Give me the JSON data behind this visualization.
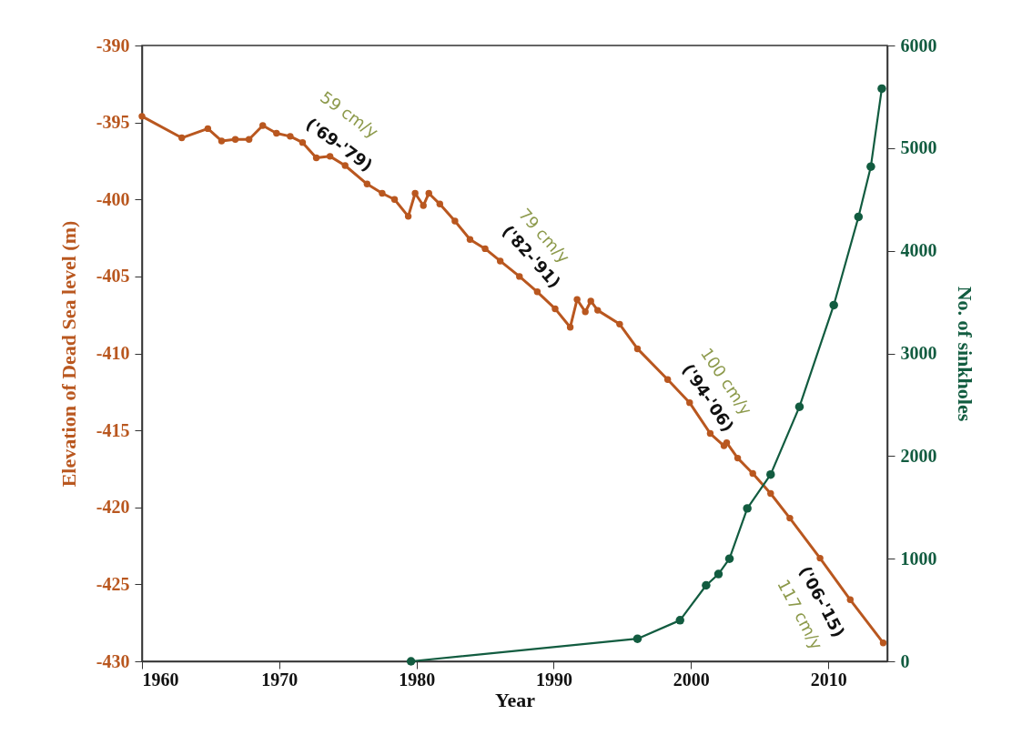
{
  "chart_data": {
    "type": "line",
    "xlabel": "Year",
    "ylabel": "Elevation of Dead Sea level (m)",
    "y2label": "No. of sinkholes",
    "xlim": [
      1960,
      2014.3
    ],
    "xticks": [
      1960,
      1970,
      1980,
      1990,
      2000,
      2010
    ],
    "ylim": [
      -430,
      -390
    ],
    "yticks": [
      -430,
      -425,
      -420,
      -415,
      -410,
      -405,
      -400,
      -395,
      -390
    ],
    "y2lim": [
      0,
      6000
    ],
    "y2ticks": [
      0,
      1000,
      2000,
      3000,
      4000,
      5000,
      6000
    ],
    "grid": false,
    "marker": "circle",
    "series": [
      {
        "color": "#b9571f",
        "axis": "y",
        "x": [
          1960,
          1962.9,
          1964.8,
          1965.8,
          1966.8,
          1967.8,
          1968.8,
          1969.8,
          1970.8,
          1971.7,
          1972.7,
          1973.7,
          1974.8,
          1976.4,
          1977.5,
          1978.4,
          1979.4,
          1979.9,
          1980.5,
          1980.9,
          1981.7,
          1982.8,
          1983.9,
          1985.0,
          1986.1,
          1987.5,
          1988.8,
          1990.1,
          1991.2,
          1991.7,
          1992.3,
          1992.7,
          1993.2,
          1994.8,
          1996.1,
          1998.3,
          1999.9,
          2001.4,
          2002.4,
          2002.6,
          2003.4,
          2004.5,
          2005.8,
          2007.2,
          2009.4,
          2011.6,
          2014.0
        ],
        "values": [
          -394.6,
          -396.0,
          -395.4,
          -396.2,
          -396.1,
          -396.1,
          -395.2,
          -395.7,
          -395.9,
          -396.3,
          -397.3,
          -397.2,
          -397.8,
          -399.0,
          -399.6,
          -400.0,
          -401.1,
          -399.6,
          -400.4,
          -399.6,
          -400.3,
          -401.4,
          -402.6,
          -403.2,
          -404.0,
          -405.0,
          -406.0,
          -407.1,
          -408.3,
          -406.5,
          -407.3,
          -406.6,
          -407.2,
          -408.1,
          -409.7,
          -411.7,
          -413.2,
          -415.2,
          -416.0,
          -415.8,
          -416.8,
          -417.8,
          -419.1,
          -420.7,
          -423.3,
          -426.0,
          -428.8
        ]
      },
      {
        "color": "#125c40",
        "axis": "y2",
        "x": [
          1979.6,
          1996.1,
          1999.2,
          2001.1,
          2002.0,
          2002.8,
          2004.1,
          2005.8,
          2007.9,
          2010.4,
          2012.2,
          2013.1,
          2013.9
        ],
        "values": [
          0,
          220,
          400,
          740,
          850,
          1000,
          1490,
          1820,
          2480,
          3470,
          4330,
          4820,
          5580
        ]
      }
    ],
    "annotations": [
      "59 cm/y",
      "('69-'79)",
      "79 cm/y",
      "('82-'91)",
      "100 cm/y",
      "('94-'06)",
      "117 cm/y",
      "('06-'15)"
    ]
  }
}
